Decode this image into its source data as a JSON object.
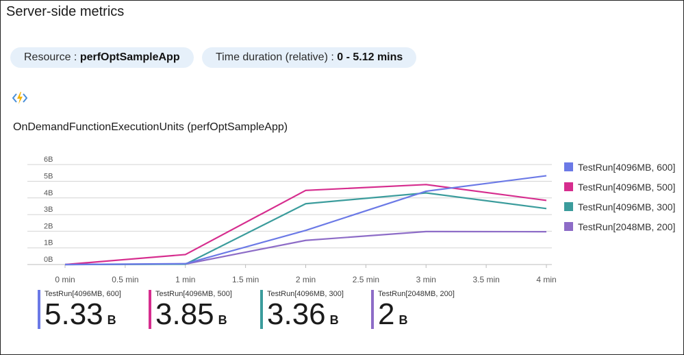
{
  "page": {
    "title": "Server-side metrics",
    "resource_label": "Resource : ",
    "resource_value": "perfOptSampleApp",
    "duration_label": "Time duration (relative) : ",
    "duration_value": "0 - 5.12 mins",
    "icon": "function-app-icon"
  },
  "chart_data": {
    "type": "line",
    "title": "OnDemandFunctionExecutionUnits (perfOptSampleApp)",
    "x": [
      0,
      1,
      2,
      3,
      4
    ],
    "x_ticks": [
      0,
      0.5,
      1,
      1.5,
      2,
      2.5,
      3,
      3.5,
      4
    ],
    "x_tick_labels": [
      "0 min",
      "0.5 min",
      "1 min",
      "1.5 min",
      "2 min",
      "2.5 min",
      "3 min",
      "3.5 min",
      "4 min"
    ],
    "xlim": [
      0,
      4
    ],
    "y_ticks": [
      0,
      1,
      2,
      3,
      4,
      5,
      6
    ],
    "y_tick_labels": [
      "0B",
      "1B",
      "2B",
      "3B",
      "4B",
      "5B",
      "6B"
    ],
    "ylim": [
      0,
      6.5
    ],
    "grid": true,
    "legend_position": "right",
    "series": [
      {
        "name": "TestRun[4096MB, 600]",
        "color": "#6b79e6",
        "x": [
          0,
          1,
          2,
          3,
          4
        ],
        "values": [
          0,
          0.05,
          2.05,
          4.4,
          5.33
        ]
      },
      {
        "name": "TestRun[4096MB, 500]",
        "color": "#d62d8e",
        "x": [
          0,
          1,
          2,
          3,
          4
        ],
        "values": [
          0,
          0.6,
          4.45,
          4.8,
          3.85
        ]
      },
      {
        "name": "TestRun[4096MB, 300]",
        "color": "#3b9c9c",
        "x": [
          0,
          1,
          2,
          3,
          4
        ],
        "values": [
          0,
          0.02,
          3.65,
          4.3,
          3.36
        ]
      },
      {
        "name": "TestRun[2048MB, 200]",
        "color": "#8d6cc7",
        "x": [
          0,
          1,
          2,
          3,
          4
        ],
        "values": [
          0,
          0.03,
          1.45,
          1.98,
          1.97
        ]
      }
    ]
  },
  "metrics": [
    {
      "name": "TestRun[4096MB, 600]",
      "value": "5.33",
      "unit": "B",
      "color": "#6b79e6"
    },
    {
      "name": "TestRun[4096MB, 500]",
      "value": "3.85",
      "unit": "B",
      "color": "#d62d8e"
    },
    {
      "name": "TestRun[4096MB, 300]",
      "value": "3.36",
      "unit": "B",
      "color": "#3b9c9c"
    },
    {
      "name": "TestRun[2048MB, 200]",
      "value": "2",
      "unit": "B",
      "color": "#8d6cc7"
    }
  ]
}
